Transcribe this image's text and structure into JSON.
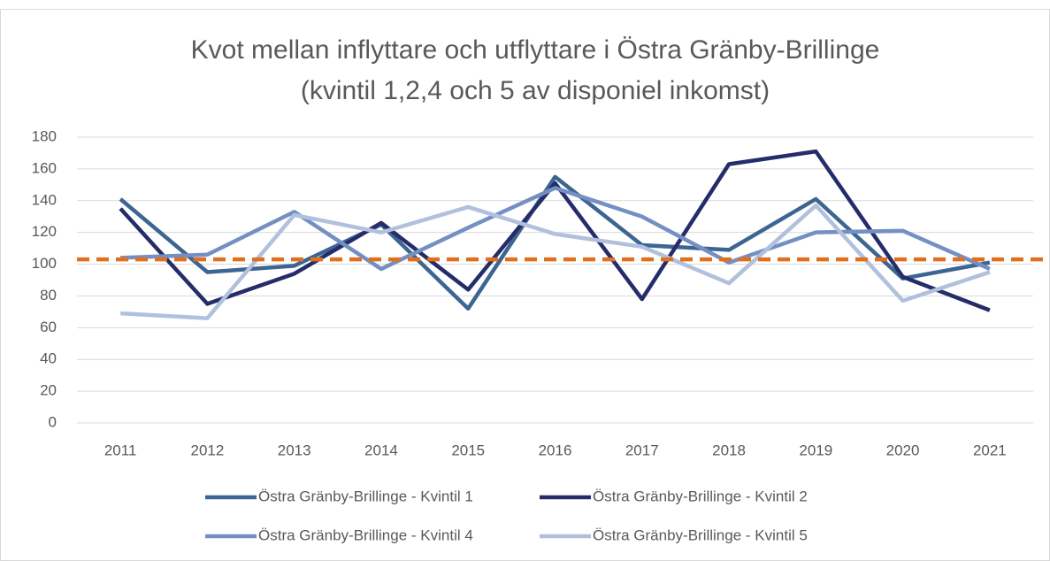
{
  "chart_data": {
    "type": "line",
    "title": [
      "Kvot mellan inflyttare och utflyttare i Östra Gränby-Brillinge",
      "(kvintil 1,2,4 och 5 av disponiel inkomst)"
    ],
    "categories": [
      "2011",
      "2012",
      "2013",
      "2014",
      "2015",
      "2016",
      "2017",
      "2018",
      "2019",
      "2020",
      "2021"
    ],
    "series": [
      {
        "name": "Östra Gränby-Brillinge - Kvintil 1",
        "color": "#3d6592",
        "values": [
          141,
          95,
          99,
          125,
          72,
          155,
          112,
          109,
          141,
          91,
          101
        ]
      },
      {
        "name": "Östra Gränby-Brillinge - Kvintil 2",
        "color": "#252c6a",
        "values": [
          135,
          75,
          94,
          126,
          84,
          151,
          78,
          163,
          171,
          92,
          71
        ]
      },
      {
        "name": "Östra Gränby-Brillinge - Kvintil 4",
        "color": "#7490c3",
        "values": [
          104,
          106,
          133,
          97,
          123,
          148,
          130,
          101,
          120,
          121,
          97
        ]
      },
      {
        "name": "Östra Gränby-Brillinge - Kvintil 5",
        "color": "#b1c0dd",
        "values": [
          69,
          66,
          131,
          120,
          136,
          119,
          111,
          88,
          137,
          77,
          95
        ]
      }
    ],
    "reference_line": {
      "value": 103,
      "color": "#e0701e"
    },
    "ylim": [
      0,
      180
    ],
    "yticks": [
      0,
      20,
      40,
      60,
      80,
      100,
      120,
      140,
      160,
      180
    ],
    "grid": true,
    "legend": "bottom"
  }
}
